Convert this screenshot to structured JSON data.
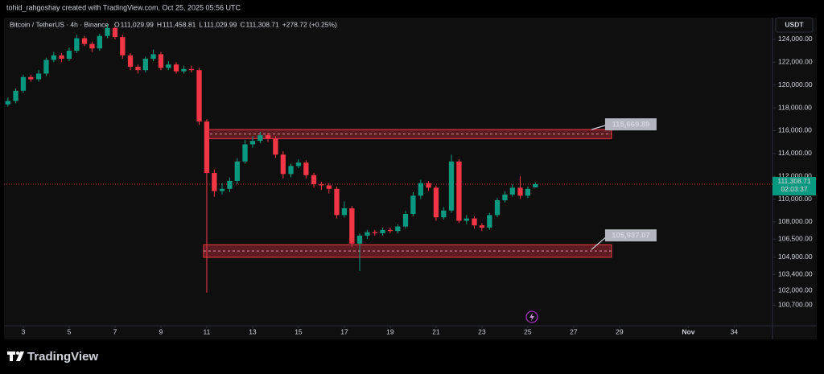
{
  "chart_data": {
    "type": "candlestick",
    "header": "tohid_rahgoshay created with TradingView.com, Oct 25, 2025 05:56 UTC",
    "symbol": "Bitcoin / TetherUS · 4h · Binance",
    "legend_values": [
      {
        "key": "O",
        "value": "111,029.99"
      },
      {
        "key": "H",
        "value": "111,458.81"
      },
      {
        "key": "L",
        "value": "111,029.99"
      },
      {
        "key": "C",
        "value": "111,308.71"
      }
    ],
    "change": "+278.72 (+0.25%)",
    "currency": "USDT",
    "brand": "TradingView",
    "x": [
      2.33,
      2.67,
      3,
      3.33,
      3.67,
      4,
      4.33,
      4.67,
      5,
      5.33,
      5.67,
      6,
      6.33,
      6.67,
      7,
      7.33,
      7.67,
      8,
      8.33,
      8.67,
      9,
      9.33,
      9.67,
      10,
      10.33,
      10.67,
      11,
      11.33,
      11.67,
      12,
      12.33,
      12.67,
      13,
      13.33,
      13.67,
      14,
      14.33,
      14.67,
      15,
      15.33,
      15.67,
      16,
      16.33,
      16.67,
      17,
      17.33,
      17.67,
      18,
      18.33,
      18.67,
      19,
      19.33,
      19.67,
      20,
      20.33,
      20.67,
      21,
      21.33,
      21.67,
      22,
      22.33,
      22.67,
      23,
      23.33,
      23.67,
      24,
      24.33,
      24.67,
      25,
      25.33
    ],
    "open": [
      118300,
      118600,
      119500,
      120700,
      120500,
      121000,
      122200,
      122600,
      122300,
      123000,
      124100,
      123600,
      123200,
      124300,
      125000,
      124200,
      122600,
      121600,
      121300,
      122300,
      122700,
      121500,
      121800,
      121200,
      121400,
      121300,
      116800,
      112300,
      110700,
      110900,
      111600,
      113300,
      114800,
      115100,
      115600,
      115300,
      113900,
      112200,
      112900,
      113200,
      112100,
      111300,
      111200,
      110900,
      108600,
      109200,
      106100,
      106800,
      107100,
      107000,
      107300,
      107200,
      107600,
      108700,
      110300,
      111400,
      111000,
      108400,
      109000,
      113300,
      108100,
      108300,
      107700,
      107500,
      108600,
      109900,
      110400,
      111000,
      110300,
      111029.99
    ],
    "high": [
      118900,
      119700,
      120900,
      120900,
      121300,
      122400,
      122900,
      122800,
      123300,
      124400,
      124300,
      123800,
      124500,
      125300,
      125100,
      124400,
      122800,
      121800,
      122500,
      123100,
      122900,
      122100,
      122000,
      121700,
      121700,
      121500,
      117000,
      112600,
      111400,
      111900,
      113600,
      115200,
      115500,
      115900,
      115800,
      115500,
      114200,
      113100,
      113500,
      113400,
      112300,
      111500,
      111400,
      111100,
      109800,
      109400,
      107000,
      107300,
      107300,
      107500,
      107500,
      107800,
      109000,
      110600,
      111700,
      111600,
      111200,
      109300,
      113900,
      113500,
      108600,
      108500,
      107900,
      108800,
      110100,
      110700,
      111300,
      112000,
      111100,
      111458.81
    ],
    "low": [
      118100,
      118400,
      119300,
      120300,
      120300,
      120800,
      122000,
      122000,
      122100,
      122800,
      123400,
      122900,
      123000,
      124100,
      124000,
      122300,
      121300,
      121000,
      121100,
      122100,
      121300,
      121300,
      121000,
      121000,
      121100,
      116500,
      101800,
      110200,
      110400,
      110600,
      111300,
      113100,
      114500,
      114900,
      115000,
      113600,
      111800,
      111900,
      112700,
      111800,
      111000,
      110800,
      110500,
      108300,
      108400,
      105800,
      103700,
      106500,
      106800,
      106800,
      107000,
      107000,
      107400,
      108500,
      110000,
      110700,
      108100,
      108200,
      108800,
      107900,
      107800,
      107400,
      107200,
      107300,
      108400,
      109700,
      110200,
      110000,
      110100,
      111029.99
    ],
    "close": [
      118600,
      119500,
      120700,
      120500,
      121000,
      122200,
      122600,
      122300,
      123000,
      124100,
      123600,
      123200,
      124300,
      125000,
      124200,
      122600,
      121600,
      121300,
      122300,
      122700,
      121500,
      121800,
      121200,
      121400,
      121300,
      116800,
      112300,
      110700,
      110900,
      111600,
      113300,
      114800,
      115100,
      115600,
      115300,
      113900,
      112200,
      112900,
      113200,
      112100,
      111300,
      111200,
      110900,
      108600,
      109200,
      106100,
      106800,
      107100,
      107000,
      107300,
      107200,
      107600,
      108700,
      110300,
      111400,
      111000,
      108400,
      109000,
      113300,
      108100,
      108300,
      107700,
      107500,
      108600,
      109900,
      110400,
      111000,
      110300,
      110900,
      111308.71
    ],
    "up_color": "#089981",
    "down_color": "#f23645",
    "xlim": [
      2.16,
      35.6
    ],
    "ylim": [
      98900,
      125900
    ],
    "xticks": [
      3,
      5,
      7,
      9,
      11,
      13,
      15,
      17,
      19,
      21,
      23,
      25,
      27,
      29,
      {
        "value": 32,
        "label": "Nov"
      },
      34
    ],
    "yticks": [
      {
        "value": 124000,
        "label": "124,000.00"
      },
      {
        "value": 122000,
        "label": "122,000.00"
      },
      {
        "value": 120000,
        "label": "120,000.00"
      },
      {
        "value": 118000,
        "label": "118,000.00"
      },
      {
        "value": 116000,
        "label": "116,000.00"
      },
      {
        "value": 114000,
        "label": "114,000.00"
      },
      {
        "value": 112000,
        "label": "112,000.00"
      },
      {
        "value": 110000,
        "label": "110,000.00"
      },
      {
        "value": 108000,
        "label": "108,000.00"
      },
      {
        "value": 106500,
        "label": "106,500.00"
      },
      {
        "value": 104900,
        "label": "104,900.00"
      },
      {
        "value": 103400,
        "label": "103,400.00"
      },
      {
        "value": 102000,
        "label": "102,000.00"
      },
      {
        "value": 100700,
        "label": "100,700.00"
      }
    ],
    "last_price": {
      "value": 111308.71,
      "label": "111,308.71",
      "countdown": "02:03:37"
    },
    "zones": [
      {
        "value": 115669.89,
        "label": "115,669.89",
        "low": 115300,
        "high": 116100,
        "x_start": 10.93,
        "x_end": 28.65
      },
      {
        "value": 105937.07,
        "label": "105,937.07",
        "low": 104900,
        "high": 106000,
        "x_start": 10.86,
        "x_end": 28.65
      }
    ]
  }
}
